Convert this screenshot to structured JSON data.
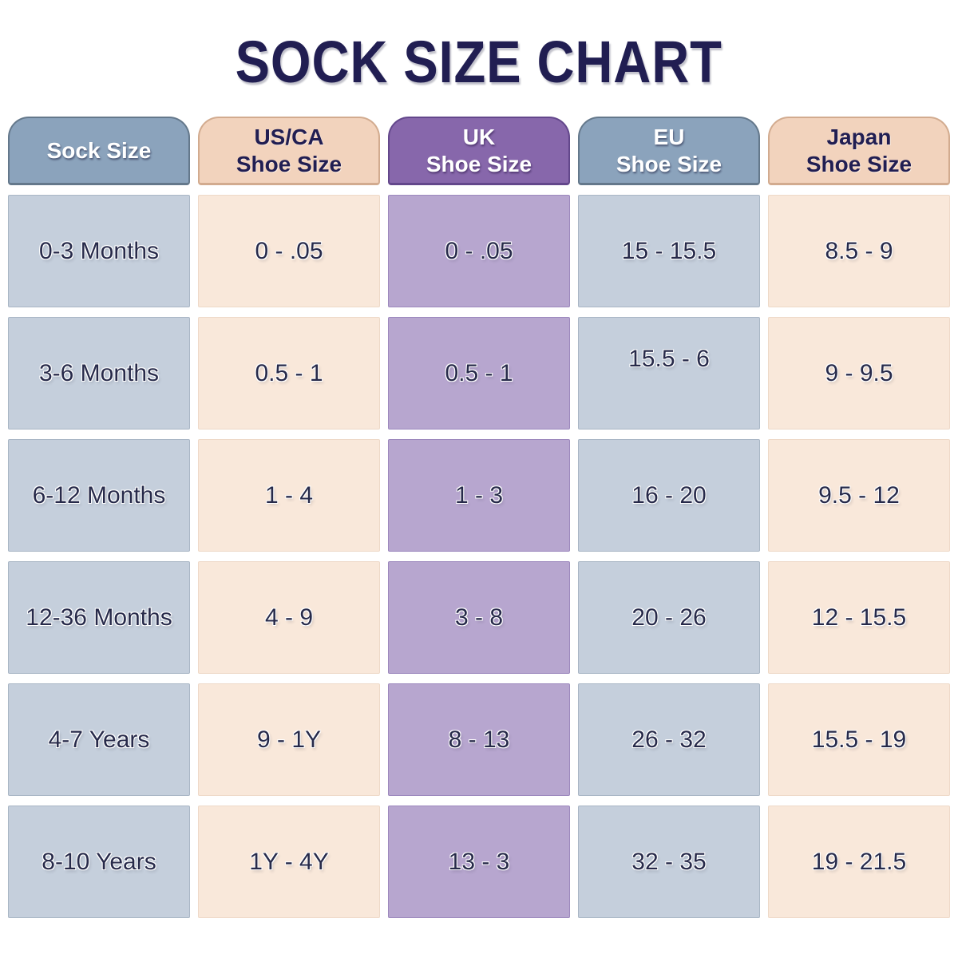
{
  "page": {
    "title": "SOCK SIZE CHART"
  },
  "colors": {
    "title_text": "#211e52",
    "cell_text": "#272a4a",
    "header_blue_bg": "#8ba3bc",
    "header_blue_border": "#64788b",
    "header_peach_bg": "#f2d3bd",
    "header_peach_border": "#d2ab8f",
    "header_purple_bg": "#8767ab",
    "header_purple_border": "#63478b",
    "body_blue_bg": "#c5cfdc",
    "body_blue_border": "#a9b6c5",
    "body_peach_bg": "#f9e8da",
    "body_peach_border": "#eed9c8",
    "body_purple_bg": "#b7a6cf",
    "body_purple_border": "#9c88bd"
  },
  "chart_data": {
    "type": "table",
    "title": "SOCK SIZE CHART",
    "legend_position": "none",
    "grid": false,
    "columns": [
      {
        "lines": [
          "Sock Size"
        ],
        "theme": "blue"
      },
      {
        "lines": [
          "US/CA",
          "Shoe Size"
        ],
        "theme": "peach"
      },
      {
        "lines": [
          "UK",
          "Shoe Size"
        ],
        "theme": "purple"
      },
      {
        "lines": [
          "EU",
          "Shoe Size"
        ],
        "theme": "blue"
      },
      {
        "lines": [
          "Japan",
          "Shoe Size"
        ],
        "theme": "peach"
      }
    ],
    "rows": [
      [
        "0-3 Months",
        "0 - .05",
        "0 - .05",
        "15 - 15.5",
        "8.5 - 9"
      ],
      [
        "3-6 Months",
        "0.5 - 1",
        "0.5 - 1",
        "15.5 - 6",
        "9 - 9.5"
      ],
      [
        "6-12 Months",
        "1 - 4",
        "1 - 3",
        "16 - 20",
        "9.5 - 12"
      ],
      [
        "12-36 Months",
        "4 - 9",
        "3 - 8",
        "20 - 26",
        "12 - 15.5"
      ],
      [
        "4-7 Years",
        "9 - 1Y",
        "8 - 13",
        "26 - 32",
        "15.5 - 19"
      ],
      [
        "8-10 Years",
        "1Y - 4Y",
        "13 - 3",
        "32 - 35",
        "19 - 21.5"
      ]
    ]
  }
}
